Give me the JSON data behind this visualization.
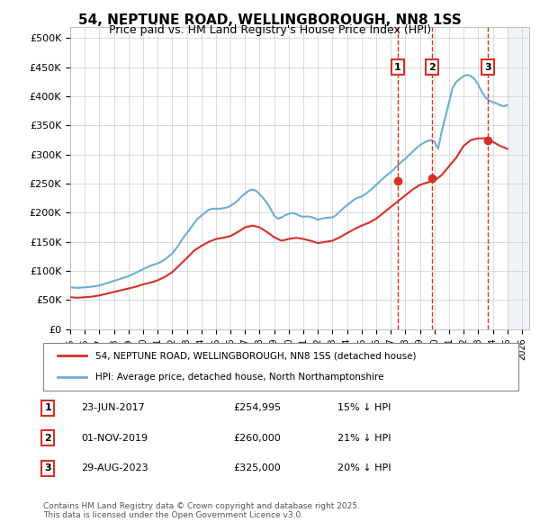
{
  "title": "54, NEPTUNE ROAD, WELLINGBOROUGH, NN8 1SS",
  "subtitle": "Price paid vs. HM Land Registry's House Price Index (HPI)",
  "ylabel_ticks": [
    "£0",
    "£50K",
    "£100K",
    "£150K",
    "£200K",
    "£250K",
    "£300K",
    "£350K",
    "£400K",
    "£450K",
    "£500K"
  ],
  "ytick_values": [
    0,
    50000,
    100000,
    150000,
    200000,
    250000,
    300000,
    350000,
    400000,
    450000,
    500000
  ],
  "ylim": [
    0,
    520000
  ],
  "xlim_start": 1995.0,
  "xlim_end": 2026.5,
  "hpi_color": "#6baed6",
  "property_color": "#d73027",
  "transaction_color": "#d73027",
  "transactions": [
    {
      "date": "23-JUN-2017",
      "label": "1",
      "year": 2017.48,
      "price": 254995,
      "hpi_pct": "15% ↓ HPI"
    },
    {
      "date": "01-NOV-2019",
      "label": "2",
      "year": 2019.83,
      "price": 260000,
      "hpi_pct": "21% ↓ HPI"
    },
    {
      "date": "29-AUG-2023",
      "label": "3",
      "year": 2023.66,
      "price": 325000,
      "hpi_pct": "20% ↓ HPI"
    }
  ],
  "legend_line1": "54, NEPTUNE ROAD, WELLINGBOROUGH, NN8 1SS (detached house)",
  "legend_line2": "HPI: Average price, detached house, North Northamptonshire",
  "footnote": "Contains HM Land Registry data © Crown copyright and database right 2025.\nThis data is licensed under the Open Government Licence v3.0.",
  "hpi_x": [
    1995.0,
    1995.25,
    1995.5,
    1995.75,
    1996.0,
    1996.25,
    1996.5,
    1996.75,
    1997.0,
    1997.25,
    1997.5,
    1997.75,
    1998.0,
    1998.25,
    1998.5,
    1998.75,
    1999.0,
    1999.25,
    1999.5,
    1999.75,
    2000.0,
    2000.25,
    2000.5,
    2000.75,
    2001.0,
    2001.25,
    2001.5,
    2001.75,
    2002.0,
    2002.25,
    2002.5,
    2002.75,
    2003.0,
    2003.25,
    2003.5,
    2003.75,
    2004.0,
    2004.25,
    2004.5,
    2004.75,
    2005.0,
    2005.25,
    2005.5,
    2005.75,
    2006.0,
    2006.25,
    2006.5,
    2006.75,
    2007.0,
    2007.25,
    2007.5,
    2007.75,
    2008.0,
    2008.25,
    2008.5,
    2008.75,
    2009.0,
    2009.25,
    2009.5,
    2009.75,
    2010.0,
    2010.25,
    2010.5,
    2010.75,
    2011.0,
    2011.25,
    2011.5,
    2011.75,
    2012.0,
    2012.25,
    2012.5,
    2012.75,
    2013.0,
    2013.25,
    2013.5,
    2013.75,
    2014.0,
    2014.25,
    2014.5,
    2014.75,
    2015.0,
    2015.25,
    2015.5,
    2015.75,
    2016.0,
    2016.25,
    2016.5,
    2016.75,
    2017.0,
    2017.25,
    2017.5,
    2017.75,
    2018.0,
    2018.25,
    2018.5,
    2018.75,
    2019.0,
    2019.25,
    2019.5,
    2019.75,
    2020.0,
    2020.25,
    2020.5,
    2020.75,
    2021.0,
    2021.25,
    2021.5,
    2021.75,
    2022.0,
    2022.25,
    2022.5,
    2022.75,
    2023.0,
    2023.25,
    2023.5,
    2023.75,
    2024.0,
    2024.25,
    2024.5,
    2024.75,
    2025.0
  ],
  "hpi_y": [
    72000,
    71500,
    71000,
    71500,
    72000,
    72500,
    73000,
    74000,
    75000,
    77000,
    79000,
    81000,
    83000,
    85000,
    87000,
    89000,
    91000,
    94000,
    97000,
    100000,
    103000,
    106000,
    109000,
    111000,
    113000,
    116000,
    120000,
    125000,
    130000,
    138000,
    147000,
    157000,
    165000,
    173000,
    182000,
    190000,
    195000,
    200000,
    205000,
    207000,
    207000,
    207000,
    208000,
    209000,
    212000,
    216000,
    221000,
    228000,
    233000,
    238000,
    240000,
    238000,
    232000,
    225000,
    217000,
    207000,
    195000,
    190000,
    192000,
    196000,
    198000,
    200000,
    198000,
    195000,
    193000,
    194000,
    193000,
    191000,
    188000,
    190000,
    191000,
    192000,
    192000,
    196000,
    202000,
    208000,
    213000,
    218000,
    223000,
    226000,
    228000,
    232000,
    237000,
    242000,
    248000,
    254000,
    260000,
    265000,
    270000,
    276000,
    282000,
    288000,
    293000,
    299000,
    305000,
    311000,
    316000,
    320000,
    323000,
    325000,
    322000,
    310000,
    340000,
    365000,
    390000,
    415000,
    425000,
    430000,
    435000,
    437000,
    435000,
    430000,
    420000,
    408000,
    398000,
    393000,
    390000,
    388000,
    385000,
    383000,
    385000
  ],
  "property_x": [
    1995.0,
    1995.5,
    1996.0,
    1996.5,
    1997.0,
    1997.5,
    1998.0,
    1998.5,
    1999.0,
    1999.5,
    2000.0,
    2000.5,
    2001.0,
    2001.5,
    2002.0,
    2002.5,
    2003.0,
    2003.5,
    2004.0,
    2004.5,
    2005.0,
    2005.5,
    2006.0,
    2006.5,
    2007.0,
    2007.5,
    2008.0,
    2008.5,
    2009.0,
    2009.5,
    2010.0,
    2010.5,
    2011.0,
    2011.5,
    2012.0,
    2012.5,
    2013.0,
    2013.5,
    2014.0,
    2014.5,
    2015.0,
    2015.5,
    2016.0,
    2016.5,
    2017.0,
    2017.5,
    2018.0,
    2018.5,
    2019.0,
    2019.5,
    2020.0,
    2020.5,
    2021.0,
    2021.5,
    2022.0,
    2022.5,
    2023.0,
    2023.5,
    2024.0,
    2024.5,
    2025.0
  ],
  "property_y": [
    55000,
    54000,
    55000,
    56000,
    58000,
    61000,
    64000,
    67000,
    70000,
    73000,
    77000,
    80000,
    84000,
    90000,
    98000,
    110000,
    122000,
    135000,
    143000,
    150000,
    155000,
    157000,
    160000,
    167000,
    175000,
    178000,
    175000,
    167000,
    158000,
    152000,
    155000,
    157000,
    155000,
    152000,
    148000,
    150000,
    152000,
    158000,
    165000,
    172000,
    178000,
    183000,
    190000,
    200000,
    210000,
    220000,
    230000,
    240000,
    248000,
    252000,
    255000,
    265000,
    280000,
    295000,
    315000,
    325000,
    328000,
    328000,
    322000,
    315000,
    310000
  ]
}
